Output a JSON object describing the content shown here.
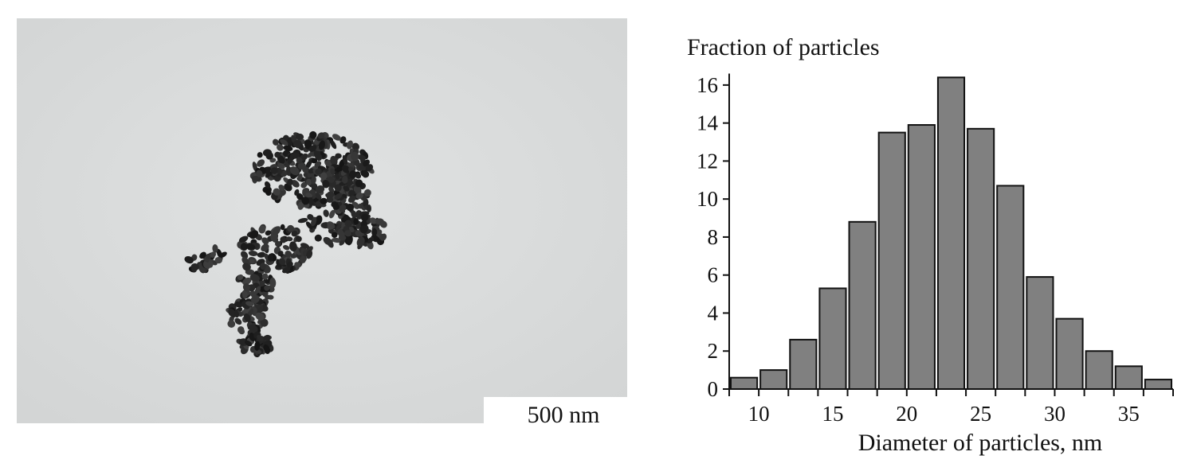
{
  "micrograph": {
    "scale_bar_label": "500 nm"
  },
  "chart_data": {
    "type": "bar",
    "title": "",
    "ylabel": "Fraction of particles",
    "xlabel": "Diameter of particles, nm",
    "x": [
      9,
      11,
      13,
      15,
      17,
      19,
      21,
      23,
      25,
      27,
      29,
      31,
      33,
      35,
      37
    ],
    "values": [
      0.6,
      1.0,
      2.6,
      5.3,
      8.8,
      13.5,
      13.9,
      16.4,
      13.7,
      10.7,
      5.9,
      3.7,
      2.0,
      1.2,
      0.5
    ],
    "bin_width": 2,
    "xlim": [
      8,
      38
    ],
    "ylim": [
      0,
      17
    ],
    "x_ticks": [
      10,
      15,
      20,
      25,
      30,
      35
    ],
    "y_ticks": [
      0,
      2,
      4,
      6,
      8,
      10,
      12,
      14,
      16
    ],
    "bar_color": "#808080",
    "grid": false,
    "legend": "none"
  }
}
